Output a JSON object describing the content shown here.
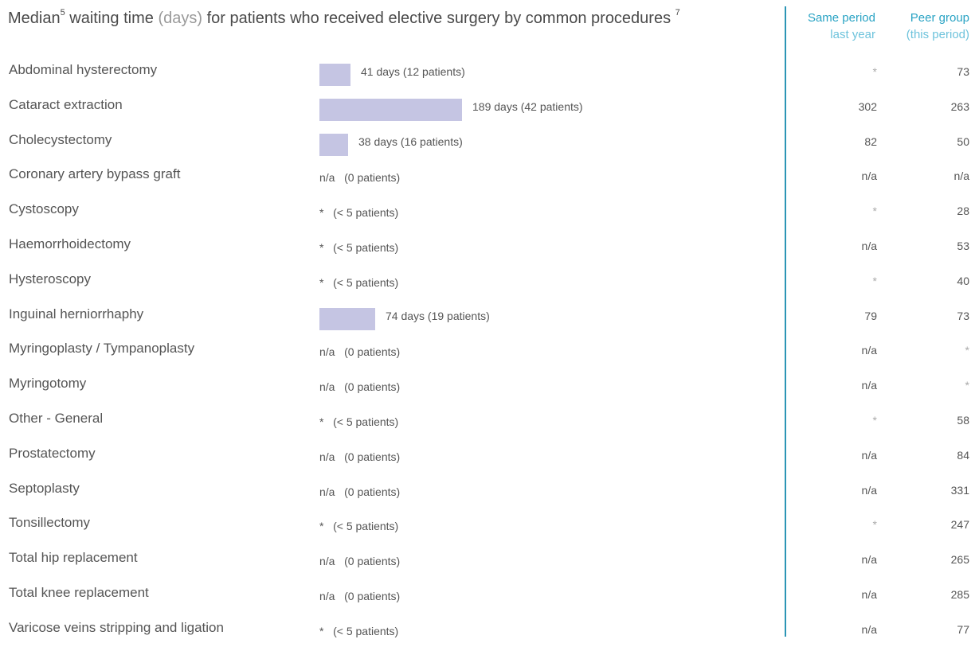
{
  "header": {
    "title_pre": "Median",
    "title_sup1": "5",
    "title_mid": " waiting time ",
    "title_unit": "(days)",
    "title_post": " for patients who received elective surgery by common procedures ",
    "title_sup2": "7",
    "col1_line1": "Same period",
    "col1_line2": "last year",
    "col2_line1": "Peer group",
    "col2_line2": "(this period)"
  },
  "colors": {
    "bar": "#c5c5e3",
    "accent": "#29a3c4",
    "divider": "#2b95b5"
  },
  "chart_data": {
    "type": "bar",
    "orientation": "horizontal",
    "categories": [
      "Abdominal hysterectomy",
      "Cataract extraction",
      "Cholecystectomy",
      "Coronary artery bypass graft",
      "Cystoscopy",
      "Haemorrhoidectomy",
      "Hysteroscopy",
      "Inguinal herniorrhaphy",
      "Myringoplasty / Tympanoplasty",
      "Myringotomy",
      "Other - General",
      "Prostatectomy",
      "Septoplasty",
      "Tonsillectomy",
      "Total hip replacement",
      "Total knee replacement",
      "Varicose veins stripping and ligation"
    ],
    "rows": [
      {
        "label": "Abdominal hysterectomy",
        "value": 41,
        "text": "41 days (12 patients)",
        "last_year": "*",
        "peer": "73"
      },
      {
        "label": "Cataract extraction",
        "value": 189,
        "text": "189 days (42 patients)",
        "last_year": "302",
        "peer": "263"
      },
      {
        "label": "Cholecystectomy",
        "value": 38,
        "text": "38 days (16 patients)",
        "last_year": "82",
        "peer": "50"
      },
      {
        "label": "Coronary artery bypass graft",
        "value": null,
        "text": "n/a   (0 patients)",
        "last_year": "n/a",
        "peer": "n/a"
      },
      {
        "label": "Cystoscopy",
        "value": null,
        "text": "*   (< 5 patients)",
        "last_year": "*",
        "peer": "28"
      },
      {
        "label": "Haemorrhoidectomy",
        "value": null,
        "text": "*   (< 5 patients)",
        "last_year": "n/a",
        "peer": "53"
      },
      {
        "label": "Hysteroscopy",
        "value": null,
        "text": "*   (< 5 patients)",
        "last_year": "*",
        "peer": "40"
      },
      {
        "label": "Inguinal herniorrhaphy",
        "value": 74,
        "text": "74 days (19 patients)",
        "last_year": "79",
        "peer": "73"
      },
      {
        "label": "Myringoplasty / Tympanoplasty",
        "value": null,
        "text": "n/a   (0 patients)",
        "last_year": "n/a",
        "peer": "*"
      },
      {
        "label": "Myringotomy",
        "value": null,
        "text": "n/a   (0 patients)",
        "last_year": "n/a",
        "peer": "*"
      },
      {
        "label": "Other - General",
        "value": null,
        "text": "*   (< 5 patients)",
        "last_year": "*",
        "peer": "58"
      },
      {
        "label": "Prostatectomy",
        "value": null,
        "text": "n/a   (0 patients)",
        "last_year": "n/a",
        "peer": "84"
      },
      {
        "label": "Septoplasty",
        "value": null,
        "text": "n/a   (0 patients)",
        "last_year": "n/a",
        "peer": "331"
      },
      {
        "label": "Tonsillectomy",
        "value": null,
        "text": "*   (< 5 patients)",
        "last_year": "*",
        "peer": "247"
      },
      {
        "label": "Total hip replacement",
        "value": null,
        "text": "n/a   (0 patients)",
        "last_year": "n/a",
        "peer": "265"
      },
      {
        "label": "Total knee replacement",
        "value": null,
        "text": "n/a   (0 patients)",
        "last_year": "n/a",
        "peer": "285"
      },
      {
        "label": "Varicose veins stripping and ligation",
        "value": null,
        "text": "*   (< 5 patients)",
        "last_year": "n/a",
        "peer": "77"
      }
    ]
  }
}
